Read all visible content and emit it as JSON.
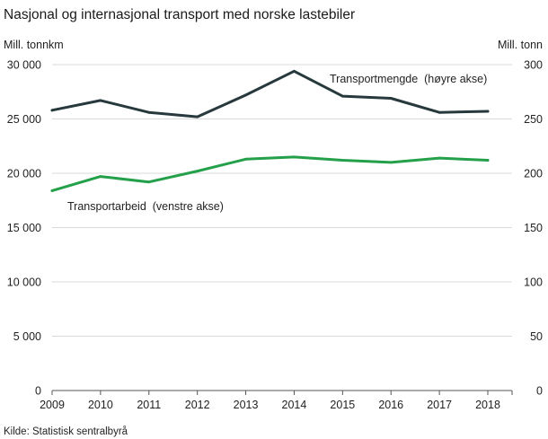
{
  "title": "Nasjonal og internasjonal transport med norske lastebiler",
  "source": "Kilde: Statistisk sentralbyrå",
  "colors": {
    "transportmengde": "#27393d",
    "transportarbeid": "#24a04a",
    "grid": "#d9d9d9",
    "text": "#222222"
  },
  "chart_data": {
    "type": "line",
    "title": "Nasjonal og internasjonal transport med norske lastebiler",
    "x": [
      "2009",
      "2010",
      "2011",
      "2012",
      "2013",
      "2014",
      "2015",
      "2016",
      "2017",
      "2018"
    ],
    "y_left": {
      "label": "Mill. tonnkm",
      "range": [
        0,
        30000
      ],
      "ticks": [
        0,
        5000,
        10000,
        15000,
        20000,
        25000,
        30000
      ],
      "tick_labels": [
        "0",
        "5 000",
        "10 000",
        "15 000",
        "20 000",
        "25 000",
        "30 000"
      ]
    },
    "y_right": {
      "label": "Mill. tonn",
      "range": [
        0,
        300
      ],
      "ticks": [
        0,
        50,
        100,
        150,
        200,
        250,
        300
      ],
      "tick_labels": [
        "0",
        "50",
        "100",
        "150",
        "200",
        "250",
        "300"
      ]
    },
    "grid": true,
    "series": [
      {
        "name": "Transportmengde  (høyre akse)",
        "axis": "right",
        "color": "#27393d",
        "values": [
          258,
          267,
          256,
          252,
          272,
          294,
          271,
          269,
          256,
          257
        ]
      },
      {
        "name": "Transportarbeid  (venstre akse)",
        "axis": "left",
        "color": "#24a04a",
        "values": [
          18400,
          19700,
          19200,
          20200,
          21300,
          21500,
          21200,
          21000,
          21400,
          21200
        ]
      }
    ]
  }
}
